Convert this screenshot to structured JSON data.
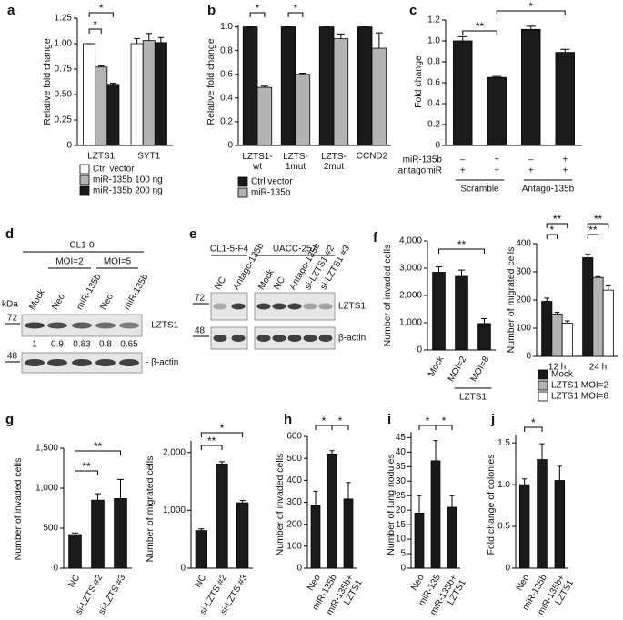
{
  "chart_data": [
    {
      "panel": "a",
      "type": "bar",
      "y_label": "Relative fold change",
      "categories": [
        "LZTS1",
        "SYT1"
      ],
      "series": [
        {
          "name": "Ctrl vector",
          "color": "#ffffff",
          "values": [
            1.0,
            1.0
          ],
          "errors": [
            0,
            0.05
          ]
        },
        {
          "name": "miR-135b 100 ng",
          "color": "#b3b3b3",
          "values": [
            0.77,
            1.03
          ],
          "errors": [
            0.01,
            0.07
          ]
        },
        {
          "name": "miR-135b 200 ng",
          "color": "#1a1a1a",
          "values": [
            0.6,
            1.01
          ],
          "errors": [
            0.01,
            0.05
          ]
        }
      ],
      "ylim": [
        0,
        1.25
      ],
      "yticks": [
        0,
        0.25,
        {
          "value": 0.5,
          "label": "0.50"
        },
        0.75,
        {
          "value": 1,
          "label": "1.00"
        },
        1.25
      ],
      "annotations": [
        "*",
        "*"
      ]
    },
    {
      "panel": "b",
      "type": "bar",
      "y_label": "Relative fold change",
      "categories": [
        "LZTS1-\nwt",
        "LZTS-\n1mut",
        "LZTS-\n2mut",
        "CCND2"
      ],
      "series": [
        {
          "name": "Ctrl vector",
          "color": "#1a1a1a",
          "values": [
            1,
            1,
            1,
            1
          ],
          "errors": [
            0,
            0,
            0,
            0
          ]
        },
        {
          "name": "miR-135b",
          "color": "#b3b3b3",
          "values": [
            0.49,
            0.6,
            0.9,
            0.82
          ],
          "errors": [
            0.01,
            0.01,
            0.04,
            0.13
          ]
        }
      ],
      "ylim": [
        0,
        1.02
      ],
      "yticks": [
        0,
        0.2,
        0.4,
        0.6,
        0.8,
        {
          "value": 1,
          "label": "1.0"
        }
      ],
      "annotations": [
        "*",
        "*"
      ]
    },
    {
      "panel": "c",
      "type": "bar",
      "y_label": "Fold change",
      "categories": [
        null,
        null,
        null,
        null
      ],
      "values": [
        1.0,
        0.65,
        1.11,
        0.89
      ],
      "errors": [
        0.04,
        0.01,
        0.03,
        0.03
      ],
      "color": "#1a1a1a",
      "ylim": [
        0,
        1.2
      ],
      "yticks": [
        0,
        0.2,
        0.4,
        0.6,
        0.8,
        {
          "value": 1,
          "label": "1.0"
        },
        1.2
      ],
      "conditions": [
        {
          "label": "miR-135b",
          "cells": [
            "–",
            "+",
            "–",
            "+"
          ]
        },
        {
          "label": "antagomiR",
          "cells": [
            "+",
            "+",
            "+",
            "+"
          ]
        }
      ],
      "groups": [
        "Scramble",
        "Antago-135b"
      ],
      "annotations": [
        "**",
        "*"
      ]
    },
    {
      "panel": "f",
      "type": "bar",
      "y_label": "Number of invaded cells",
      "categories": [
        "Mock",
        "MOI=2",
        "MOI=8"
      ],
      "values": [
        2850,
        2700,
        970
      ],
      "errors": [
        200,
        230,
        180
      ],
      "color": "#1a1a1a",
      "ylim": [
        0,
        4000
      ],
      "yticks": [
        0,
        {
          "value": 1000,
          "label": "1,000"
        },
        {
          "value": 2000,
          "label": "2,000"
        },
        {
          "value": 3000,
          "label": "3,000"
        },
        {
          "value": 4000,
          "label": "4,000"
        }
      ],
      "group_label": "LZTS1",
      "annotations": [
        "**"
      ]
    },
    {
      "type": "bar",
      "y_label": "Number of migrated cells",
      "categories": [
        "12 h",
        "24 h"
      ],
      "series": [
        {
          "name": "Mock",
          "color": "#1a1a1a",
          "values": [
            195,
            350
          ],
          "errors": [
            12,
            12
          ]
        },
        {
          "name": "LZTS1 MOI=2",
          "color": "#b3b3b3",
          "values": [
            150,
            280
          ],
          "errors": [
            6,
            3
          ]
        },
        {
          "name": "LZTS1 MOI=8",
          "color": "#ffffff",
          "values": [
            118,
            235
          ],
          "errors": [
            8,
            15
          ]
        }
      ],
      "ylim": [
        0,
        400
      ],
      "yticks": [
        0,
        100,
        200,
        300,
        400
      ],
      "annotations": [
        "**",
        "*",
        "**",
        "**"
      ]
    },
    {
      "panel": "g",
      "type": "bar",
      "y_label": "Number of invaded cells",
      "categories": [
        "NC",
        "si-LZTS #2",
        "si-LZTS #3"
      ],
      "values": [
        420,
        850,
        870
      ],
      "errors": [
        20,
        80,
        240
      ],
      "color": "#1a1a1a",
      "ylim": [
        0,
        1500
      ],
      "yticks": [
        0,
        500,
        {
          "value": 1000,
          "label": "1,000"
        },
        {
          "value": 1500,
          "label": "1,500"
        }
      ],
      "annotations": [
        "**",
        "**"
      ]
    },
    {
      "type": "bar",
      "y_label": "Number of migrated cells",
      "categories": [
        "NC",
        "si-LZTS #2",
        "si-LZTS #3"
      ],
      "values": [
        650,
        1800,
        1130
      ],
      "errors": [
        30,
        40,
        40
      ],
      "color": "#1a1a1a",
      "ylim": [
        0,
        2200
      ],
      "yticks": [
        0,
        {
          "value": 1000,
          "label": "1,000"
        },
        {
          "value": 2000,
          "label": "2,000"
        }
      ],
      "annotations": [
        "*",
        "**"
      ]
    },
    {
      "panel": "h",
      "type": "bar",
      "y_label": "Number of invaded cells",
      "categories": [
        "Neo",
        "miR-135b",
        "miR-135b+\nLZTS1"
      ],
      "values": [
        285,
        520,
        315
      ],
      "errors": [
        65,
        15,
        75
      ],
      "color": "#1a1a1a",
      "ylim": [
        0,
        600
      ],
      "yticks": [
        0,
        100,
        200,
        300,
        400,
        500,
        600
      ],
      "annotations": [
        "*",
        "*"
      ]
    },
    {
      "panel": "i",
      "type": "bar",
      "y_label": "Number of lung nodules",
      "categories": [
        "Neo",
        "miR-135",
        "miR-135b+\nLZTS1"
      ],
      "values": [
        19,
        37,
        21
      ],
      "errors": [
        6,
        7,
        4
      ],
      "color": "#1a1a1a",
      "ylim": [
        0,
        47
      ],
      "yticks": [
        0,
        5,
        10,
        15,
        20,
        25,
        30,
        35,
        40,
        45
      ],
      "annotations": [
        "*",
        "*"
      ]
    },
    {
      "panel": "j",
      "type": "bar",
      "y_label": "Fold change of colonies",
      "categories": [
        "Neo",
        "miR-135b",
        "miR-135b+\nLZTS1"
      ],
      "values": [
        1.0,
        1.3,
        1.05
      ],
      "errors": [
        0.07,
        0.19,
        0.17
      ],
      "color": "#1a1a1a",
      "ylim": [
        0,
        1.6
      ],
      "yticks": [
        0,
        0.5,
        {
          "value": 1,
          "label": "1.0"
        },
        1.5
      ],
      "annotations": [
        "*"
      ]
    }
  ],
  "blots": {
    "d": {
      "panel": "d",
      "cell_line": "CL1-0",
      "groups": [
        "MOI=2",
        "MOI=5"
      ],
      "lanes": [
        "Mock",
        "Neo",
        "miR-135b",
        "Neo",
        "miR-135b"
      ],
      "kda_label": "kDa",
      "markers": [
        72,
        48
      ],
      "bands": [
        "- LZTS1",
        "- β-actin"
      ],
      "quantification": [
        1,
        0.9,
        0.83,
        0.8,
        0.65
      ]
    },
    "e": {
      "panel": "e",
      "groups": [
        {
          "name": "CL1-5-F4",
          "lanes": [
            "NC",
            "Antago-135b"
          ]
        },
        {
          "name": "UACC-257",
          "lanes": [
            "Mock",
            "NC",
            "Antago-135b",
            "si-LZTS1 #2",
            "si-LZTS1 #3"
          ]
        }
      ],
      "markers": [
        72,
        48
      ],
      "bands": [
        "LZTS1",
        "β-actin"
      ]
    }
  }
}
